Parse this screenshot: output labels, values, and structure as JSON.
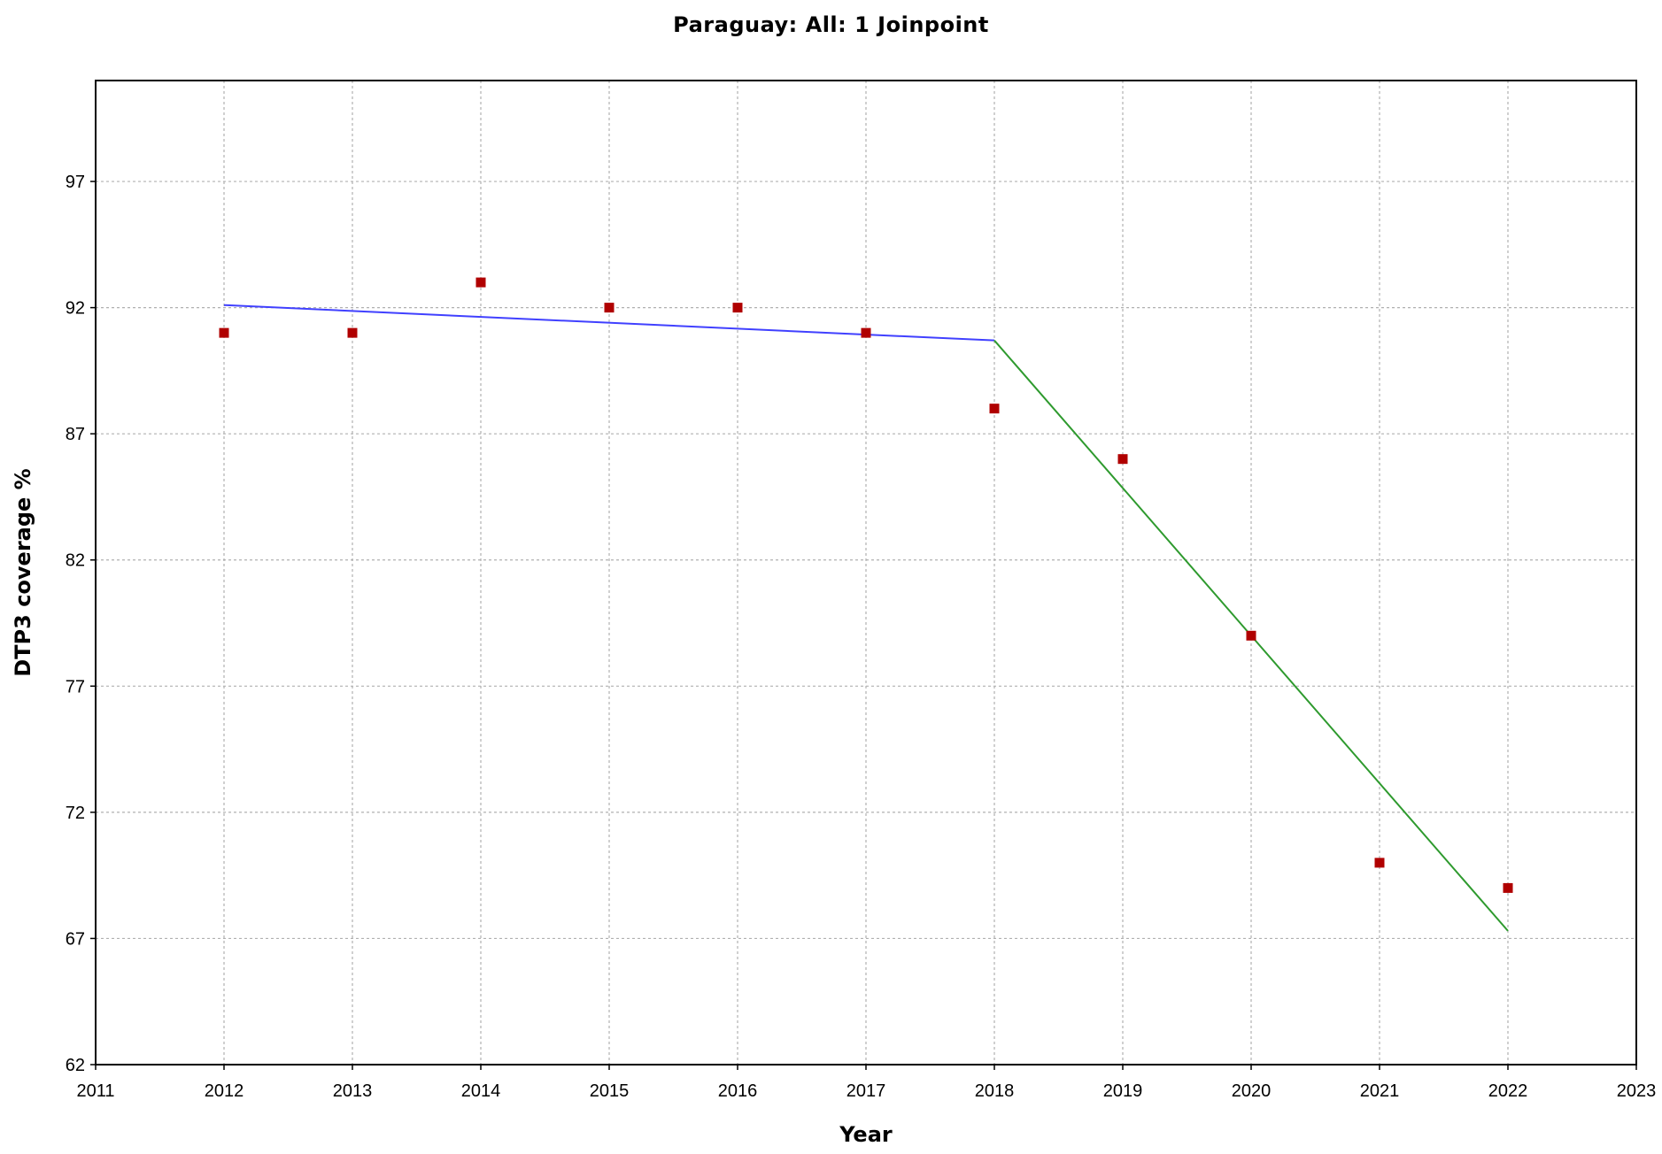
{
  "chart_data": {
    "type": "line",
    "title": "Paraguay: All: 1 Joinpoint",
    "xlabel": "Year",
    "ylabel": "DTP3 coverage %",
    "xlim": [
      2011,
      2023
    ],
    "ylim": [
      62,
      101
    ],
    "x_ticks": [
      2011,
      2012,
      2013,
      2014,
      2015,
      2016,
      2017,
      2018,
      2019,
      2020,
      2021,
      2022,
      2023
    ],
    "y_ticks": [
      62,
      67,
      72,
      77,
      82,
      87,
      92,
      97
    ],
    "grid": true,
    "legend": "none",
    "observed": {
      "marker": "square",
      "color": "#b00000",
      "x": [
        2012,
        2013,
        2014,
        2015,
        2016,
        2017,
        2018,
        2019,
        2020,
        2021,
        2022
      ],
      "y": [
        91,
        91,
        93,
        92,
        92,
        91,
        88,
        86,
        79,
        70,
        69
      ]
    },
    "segments": [
      {
        "color": "#4040ff",
        "x": [
          2012,
          2018
        ],
        "y": [
          92.1,
          90.7
        ]
      },
      {
        "color": "#2e9a2e",
        "x": [
          2018,
          2022
        ],
        "y": [
          90.7,
          67.3
        ]
      }
    ]
  }
}
